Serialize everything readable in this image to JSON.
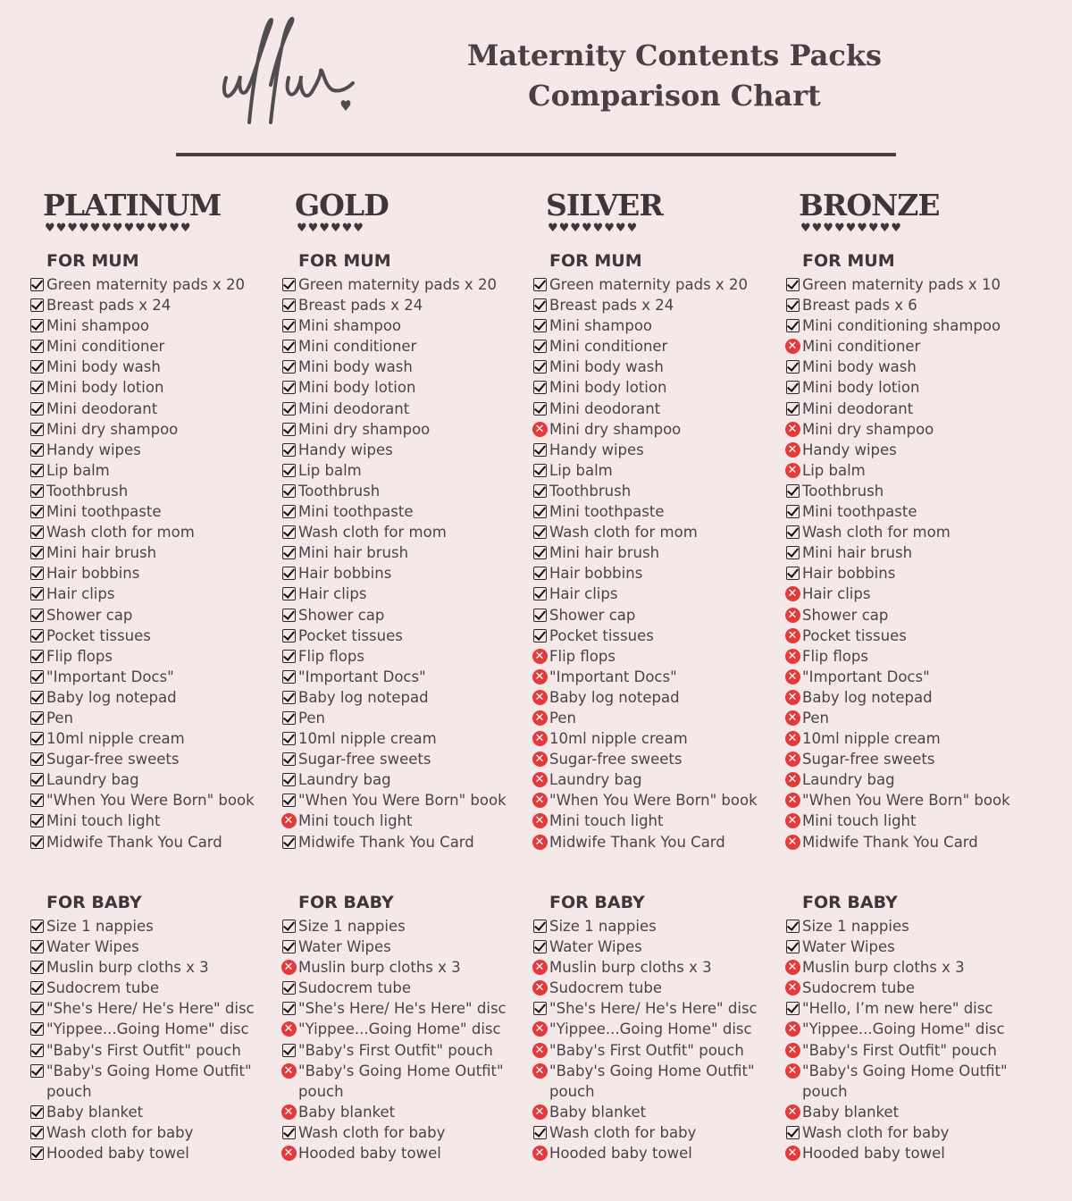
{
  "header": {
    "title_line1": "Maternity Contents Packs",
    "title_line2": "Comparison Chart"
  },
  "colors": {
    "background": "#f5e8e9",
    "text": "#4a4448",
    "cross": "#e33b3b"
  },
  "mum_label": "FOR MUM",
  "baby_label": "FOR BABY",
  "tiers": [
    {
      "name": "PLATINUM",
      "hearts": 13,
      "mum": [
        [
          "Green maternity pads x 20",
          1
        ],
        [
          "Breast pads x 24",
          1
        ],
        [
          "Mini shampoo",
          1
        ],
        [
          "Mini conditioner",
          1
        ],
        [
          "Mini body wash",
          1
        ],
        [
          "Mini body lotion",
          1
        ],
        [
          "Mini deodorant",
          1
        ],
        [
          "Mini dry shampoo",
          1
        ],
        [
          "Handy wipes",
          1
        ],
        [
          "Lip balm",
          1
        ],
        [
          "Toothbrush",
          1
        ],
        [
          "Mini toothpaste",
          1
        ],
        [
          "Wash cloth for mom",
          1
        ],
        [
          "Mini hair brush",
          1
        ],
        [
          "Hair bobbins",
          1
        ],
        [
          "Hair clips",
          1
        ],
        [
          "Shower cap",
          1
        ],
        [
          "Pocket tissues",
          1
        ],
        [
          "Flip flops",
          1
        ],
        [
          "\"Important Docs\"",
          1
        ],
        [
          "Baby log notepad",
          1
        ],
        [
          "Pen",
          1
        ],
        [
          "10ml nipple cream",
          1
        ],
        [
          "Sugar-free sweets",
          1
        ],
        [
          "Laundry bag",
          1
        ],
        [
          "\"When You Were Born\" book",
          1
        ],
        [
          "Mini touch light",
          1
        ],
        [
          "Midwife Thank You Card",
          1
        ]
      ],
      "baby": [
        [
          "Size 1 nappies",
          1
        ],
        [
          "Water Wipes",
          1
        ],
        [
          "Muslin burp cloths x 3",
          1
        ],
        [
          "Sudocrem tube",
          1
        ],
        [
          "\"She's Here/ He's Here\" disc",
          1
        ],
        [
          "\"Yippee...Going Home\" disc",
          1
        ],
        [
          "\"Baby's First Outfit\" pouch",
          1
        ],
        [
          "\"Baby's Going Home Outfit\" pouch",
          1
        ],
        [
          "Baby blanket",
          1
        ],
        [
          "Wash cloth for baby",
          1
        ],
        [
          "Hooded baby towel",
          1
        ]
      ]
    },
    {
      "name": "GOLD",
      "hearts": 6,
      "mum": [
        [
          "Green maternity pads x 20",
          1
        ],
        [
          "Breast pads x 24",
          1
        ],
        [
          "Mini shampoo",
          1
        ],
        [
          "Mini conditioner",
          1
        ],
        [
          "Mini body wash",
          1
        ],
        [
          "Mini body lotion",
          1
        ],
        [
          "Mini deodorant",
          1
        ],
        [
          "Mini dry shampoo",
          1
        ],
        [
          "Handy wipes",
          1
        ],
        [
          "Lip balm",
          1
        ],
        [
          "Toothbrush",
          1
        ],
        [
          "Mini toothpaste",
          1
        ],
        [
          "Wash cloth for mom",
          1
        ],
        [
          "Mini hair brush",
          1
        ],
        [
          "Hair bobbins",
          1
        ],
        [
          "Hair clips",
          1
        ],
        [
          "Shower cap",
          1
        ],
        [
          "Pocket tissues",
          1
        ],
        [
          "Flip flops",
          1
        ],
        [
          "\"Important Docs\"",
          1
        ],
        [
          "Baby log notepad",
          1
        ],
        [
          "Pen",
          1
        ],
        [
          "10ml nipple cream",
          1
        ],
        [
          "Sugar-free sweets",
          1
        ],
        [
          "Laundry bag",
          1
        ],
        [
          "\"When You Were Born\" book",
          1
        ],
        [
          "Mini touch light",
          0
        ],
        [
          "Midwife Thank You Card",
          1
        ]
      ],
      "baby": [
        [
          "Size 1 nappies",
          1
        ],
        [
          "Water Wipes",
          1
        ],
        [
          "Muslin burp cloths x 3",
          0
        ],
        [
          "Sudocrem tube",
          1
        ],
        [
          "\"She's Here/ He's Here\" disc",
          1
        ],
        [
          "\"Yippee...Going Home\" disc",
          0
        ],
        [
          "\"Baby's First Outfit\" pouch",
          1
        ],
        [
          "\"Baby's Going Home Outfit\" pouch",
          0
        ],
        [
          "Baby blanket",
          0
        ],
        [
          "Wash cloth for baby",
          1
        ],
        [
          "Hooded baby towel",
          0
        ]
      ]
    },
    {
      "name": "SILVER",
      "hearts": 8,
      "mum": [
        [
          "Green maternity pads x 20",
          1
        ],
        [
          "Breast pads x 24",
          1
        ],
        [
          "Mini shampoo",
          1
        ],
        [
          "Mini conditioner",
          1
        ],
        [
          "Mini body wash",
          1
        ],
        [
          "Mini body lotion",
          1
        ],
        [
          "Mini deodorant",
          1
        ],
        [
          "Mini dry shampoo",
          0
        ],
        [
          "Handy wipes",
          1
        ],
        [
          "Lip balm",
          1
        ],
        [
          "Toothbrush",
          1
        ],
        [
          "Mini toothpaste",
          1
        ],
        [
          "Wash cloth for mom",
          1
        ],
        [
          "Mini hair brush",
          1
        ],
        [
          "Hair bobbins",
          1
        ],
        [
          "Hair clips",
          1
        ],
        [
          "Shower cap",
          1
        ],
        [
          "Pocket tissues",
          1
        ],
        [
          "Flip flops",
          0
        ],
        [
          "\"Important Docs\"",
          0
        ],
        [
          "Baby log notepad",
          0
        ],
        [
          "Pen",
          0
        ],
        [
          "10ml nipple cream",
          0
        ],
        [
          "Sugar-free sweets",
          0
        ],
        [
          "Laundry bag",
          0
        ],
        [
          "\"When You Were Born\" book",
          0
        ],
        [
          "Mini touch light",
          0
        ],
        [
          "Midwife Thank You Card",
          0
        ]
      ],
      "baby": [
        [
          "Size 1 nappies",
          1
        ],
        [
          "Water Wipes",
          1
        ],
        [
          "Muslin burp cloths x 3",
          0
        ],
        [
          "Sudocrem tube",
          0
        ],
        [
          "\"She's Here/ He's Here\" disc",
          1
        ],
        [
          "\"Yippee...Going Home\" disc",
          0
        ],
        [
          "\"Baby's First Outfit\" pouch",
          0
        ],
        [
          "\"Baby's Going Home Outfit\" pouch",
          0
        ],
        [
          "Baby blanket",
          0
        ],
        [
          "Wash cloth for baby",
          1
        ],
        [
          "Hooded baby towel",
          0
        ]
      ]
    },
    {
      "name": "BRONZE",
      "hearts": 9,
      "mum": [
        [
          "Green maternity pads x 10",
          1
        ],
        [
          "Breast pads x 6",
          1
        ],
        [
          "Mini conditioning shampoo",
          1
        ],
        [
          "Mini conditioner",
          0
        ],
        [
          "Mini body wash",
          1
        ],
        [
          "Mini body lotion",
          1
        ],
        [
          "Mini deodorant",
          1
        ],
        [
          "Mini dry shampoo",
          0
        ],
        [
          "Handy wipes",
          0
        ],
        [
          "Lip balm",
          0
        ],
        [
          "Toothbrush",
          1
        ],
        [
          "Mini toothpaste",
          1
        ],
        [
          "Wash cloth for mom",
          1
        ],
        [
          "Mini hair brush",
          1
        ],
        [
          "Hair bobbins",
          1
        ],
        [
          "Hair clips",
          0
        ],
        [
          "Shower cap",
          0
        ],
        [
          "Pocket tissues",
          0
        ],
        [
          "Flip flops",
          0
        ],
        [
          "\"Important Docs\"",
          0
        ],
        [
          "Baby log notepad",
          0
        ],
        [
          "Pen",
          0
        ],
        [
          "10ml nipple cream",
          0
        ],
        [
          "Sugar-free sweets",
          0
        ],
        [
          "Laundry bag",
          0
        ],
        [
          "\"When You Were Born\" book",
          0
        ],
        [
          "Mini touch light",
          0
        ],
        [
          "Midwife Thank You Card",
          0
        ]
      ],
      "baby": [
        [
          "Size 1 nappies",
          1
        ],
        [
          "Water Wipes",
          1
        ],
        [
          "Muslin burp cloths x 3",
          0
        ],
        [
          "Sudocrem tube",
          0
        ],
        [
          "\"Hello, I’m new here\" disc",
          1
        ],
        [
          "\"Yippee...Going Home\" disc",
          0
        ],
        [
          "\"Baby's First Outfit\" pouch",
          0
        ],
        [
          "\"Baby's Going Home Outfit\" pouch",
          0
        ],
        [
          "Baby blanket",
          0
        ],
        [
          "Wash cloth for baby",
          1
        ],
        [
          "Hooded baby towel",
          0
        ]
      ]
    }
  ]
}
